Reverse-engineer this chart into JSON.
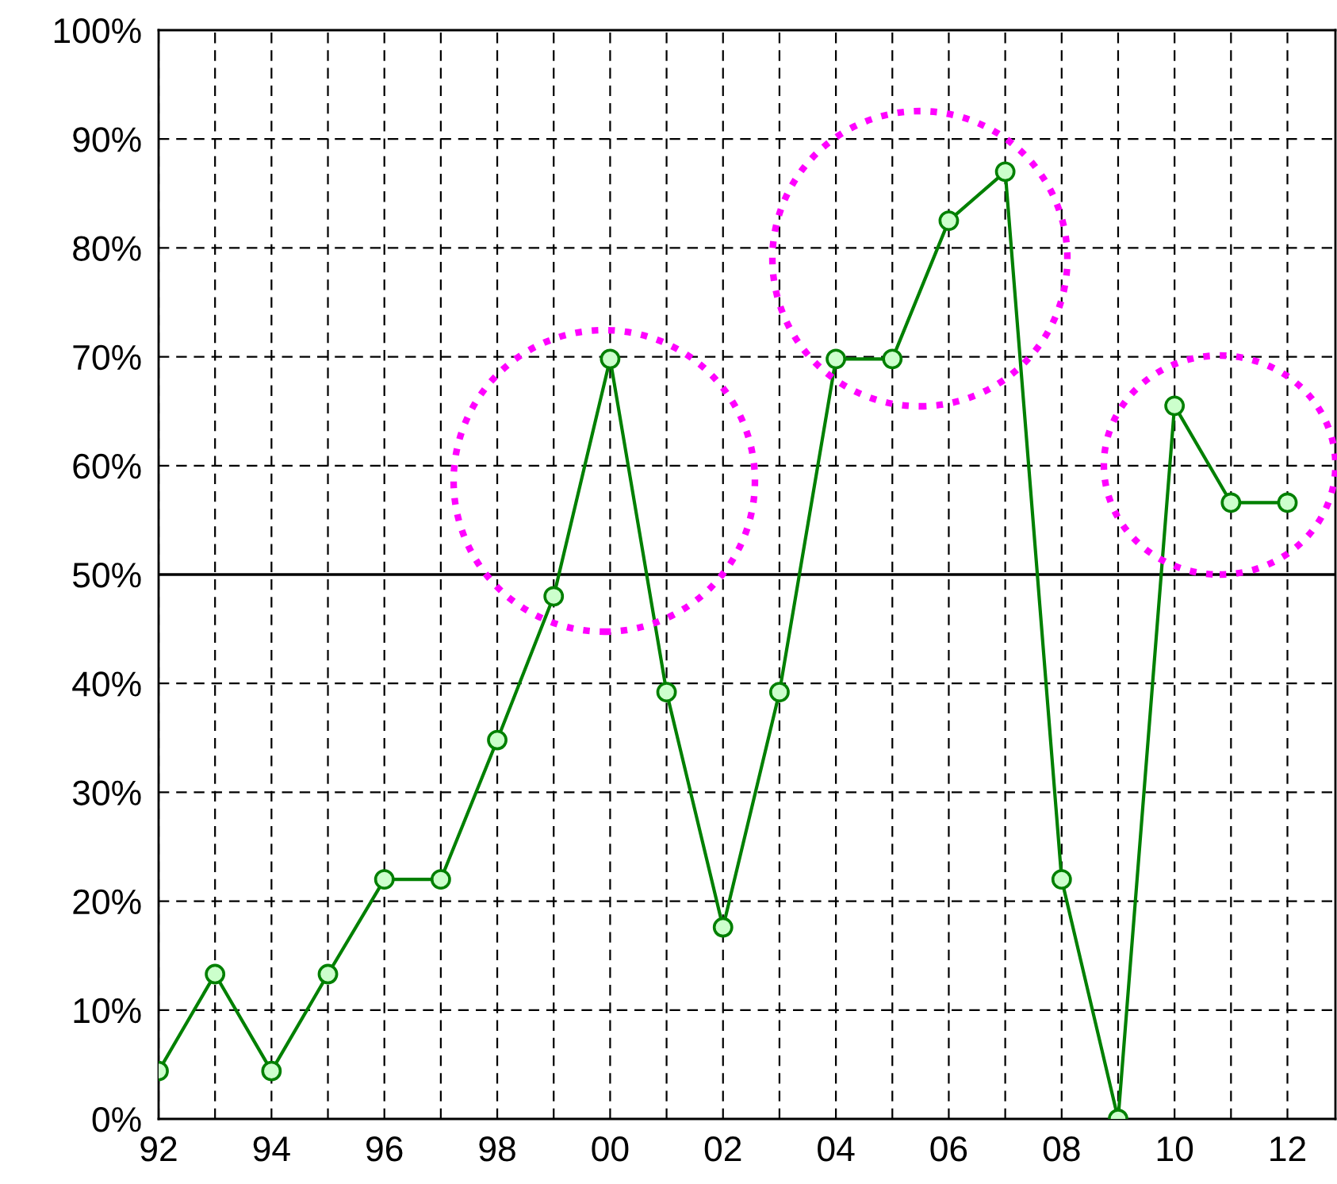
{
  "chart_data": {
    "type": "line",
    "x": [
      1992,
      1993,
      1994,
      1995,
      1996,
      1997,
      1998,
      1999,
      2000,
      2001,
      2002,
      2003,
      2004,
      2005,
      2006,
      2007,
      2008,
      2009,
      2010,
      2011,
      2012
    ],
    "series": [
      {
        "color": "#008000",
        "values": [
          4.4,
          13.3,
          4.4,
          13.3,
          22.0,
          22.0,
          34.8,
          48.0,
          69.8,
          39.2,
          17.6,
          39.2,
          69.8,
          69.8,
          82.5,
          87.0,
          22.0,
          0,
          65.5,
          56.6,
          56.6
        ]
      }
    ],
    "xlim": [
      1992,
      2012.85
    ],
    "xticks": [
      {
        "value": 1992,
        "label": "92"
      },
      {
        "value": 1993,
        "label": null
      },
      {
        "value": 1994,
        "label": "94"
      },
      {
        "value": 1995,
        "label": null
      },
      {
        "value": 1996,
        "label": "96"
      },
      {
        "value": 1997,
        "label": null
      },
      {
        "value": 1998,
        "label": "98"
      },
      {
        "value": 1999,
        "label": null
      },
      {
        "value": 2000,
        "label": "00"
      },
      {
        "value": 2001,
        "label": null
      },
      {
        "value": 2002,
        "label": "02"
      },
      {
        "value": 2003,
        "label": null
      },
      {
        "value": 2004,
        "label": "04"
      },
      {
        "value": 2005,
        "label": null
      },
      {
        "value": 2006,
        "label": "06"
      },
      {
        "value": 2007,
        "label": null
      },
      {
        "value": 2008,
        "label": "08"
      },
      {
        "value": 2009,
        "label": null
      },
      {
        "value": 2010,
        "label": "10"
      },
      {
        "value": 2011,
        "label": null
      },
      {
        "value": 2012,
        "label": "12"
      }
    ],
    "ylim": [
      0,
      100
    ],
    "yticks": [
      {
        "value": 0,
        "label": "0%"
      },
      {
        "value": 10,
        "label": "10%"
      },
      {
        "value": 20,
        "label": "20%"
      },
      {
        "value": 30,
        "label": "30%"
      },
      {
        "value": 40,
        "label": "40%"
      },
      {
        "value": 50,
        "label": "50%"
      },
      {
        "value": 60,
        "label": "60%"
      },
      {
        "value": 70,
        "label": "70%"
      },
      {
        "value": 80,
        "label": "80%"
      },
      {
        "value": 90,
        "label": "90%"
      },
      {
        "value": 100,
        "label": "100%"
      }
    ],
    "ref_lines": [
      {
        "axis": "y",
        "value": 50,
        "color": "#000000",
        "line_style": "solid"
      }
    ],
    "grid": true,
    "marker": "circle",
    "line_style": "solid"
  }
}
